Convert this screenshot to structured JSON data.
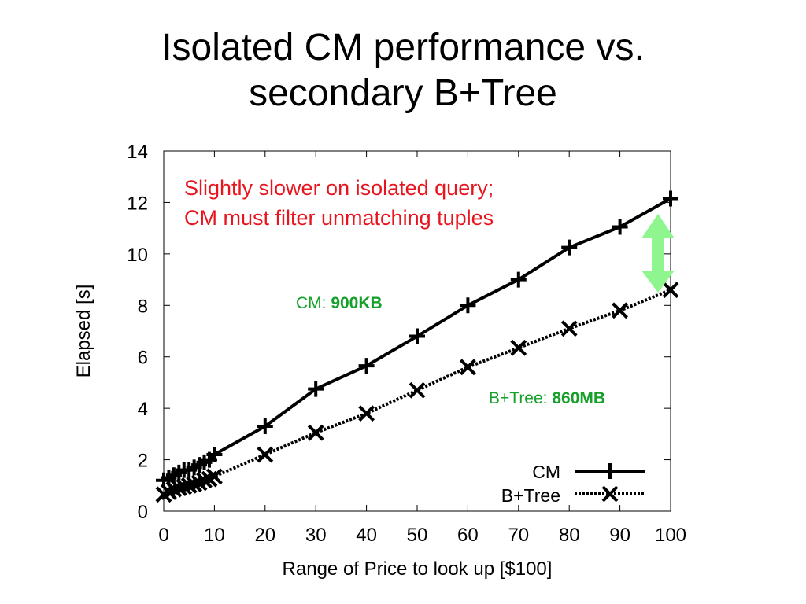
{
  "slide": {
    "title_line1": "Isolated CM performance vs.",
    "title_line2": "secondary B+Tree"
  },
  "annotations": {
    "note_line1": "Slightly slower on isolated query;",
    "note_line2": "CM must filter unmatching tuples",
    "cm_size_prefix": "CM: ",
    "cm_size_value": "900KB",
    "btree_size_prefix": "B+Tree: ",
    "btree_size_value": "860MB"
  },
  "colors": {
    "note": "#e8141e",
    "size_label": "#16a02a",
    "arrow": "#8ff58f",
    "series": "#000000"
  },
  "chart_data": {
    "type": "line",
    "xlabel": "Range of Price to look up [$100]",
    "ylabel": "Elapsed [s]",
    "xlim": [
      0,
      100
    ],
    "ylim": [
      0,
      14
    ],
    "x_ticks": [
      0,
      10,
      20,
      30,
      40,
      50,
      60,
      70,
      80,
      90,
      100
    ],
    "y_ticks": [
      0,
      2,
      4,
      6,
      8,
      10,
      12,
      14
    ],
    "legend_position": "bottom-right",
    "grid": false,
    "series": [
      {
        "name": "CM",
        "style": "solid",
        "marker": "plus",
        "x": [
          0,
          1,
          2,
          3,
          4,
          5,
          6,
          7,
          8,
          9,
          10,
          20,
          30,
          40,
          50,
          60,
          70,
          80,
          90,
          100
        ],
        "y": [
          1.2,
          1.3,
          1.4,
          1.5,
          1.6,
          1.6,
          1.7,
          1.8,
          1.9,
          2.0,
          2.2,
          3.3,
          4.75,
          5.65,
          6.8,
          8.0,
          9.0,
          10.25,
          11.05,
          12.15
        ]
      },
      {
        "name": "B+Tree",
        "style": "dotted",
        "marker": "cross",
        "x": [
          0,
          1,
          2,
          3,
          4,
          5,
          6,
          7,
          8,
          9,
          10,
          20,
          30,
          40,
          50,
          60,
          70,
          80,
          90,
          100
        ],
        "y": [
          0.65,
          0.75,
          0.85,
          0.9,
          0.95,
          1.0,
          1.05,
          1.1,
          1.2,
          1.25,
          1.35,
          2.2,
          3.05,
          3.8,
          4.7,
          5.6,
          6.35,
          7.1,
          7.8,
          8.6
        ]
      }
    ]
  }
}
